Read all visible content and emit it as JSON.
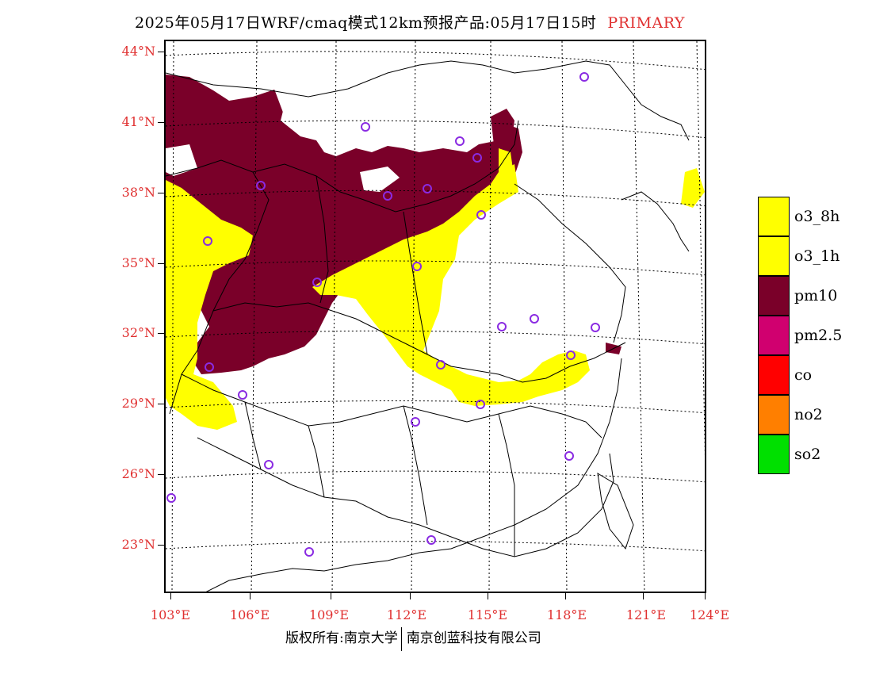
{
  "title": {
    "main": "2025年05月17日WRF/cmaq模式12km预报产品:05月17日15时",
    "product_type": "PRIMARY",
    "product_type_color": "#e03030"
  },
  "latitude_labels": [
    "44°N",
    "41°N",
    "38°N",
    "35°N",
    "32°N",
    "29°N",
    "26°N",
    "23°N"
  ],
  "longitude_labels": [
    "103°E",
    "106°E",
    "109°E",
    "112°E",
    "115°E",
    "118°E",
    "121°E",
    "124°E"
  ],
  "legend": [
    {
      "label": "o3_8h",
      "color": "#ffff00"
    },
    {
      "label": "o3_1h",
      "color": "#ffff00"
    },
    {
      "label": "pm10",
      "color": "#7a0029"
    },
    {
      "label": "pm2.5",
      "color": "#d0006f"
    },
    {
      "label": "co",
      "color": "#ff0000"
    },
    {
      "label": "no2",
      "color": "#ff7f00"
    },
    {
      "label": "so2",
      "color": "#00e000"
    }
  ],
  "station_marker_color": "#8a2be2",
  "footer": {
    "copyright": "版权所有:南京大学",
    "company": "南京创蓝科技有限公司"
  }
}
